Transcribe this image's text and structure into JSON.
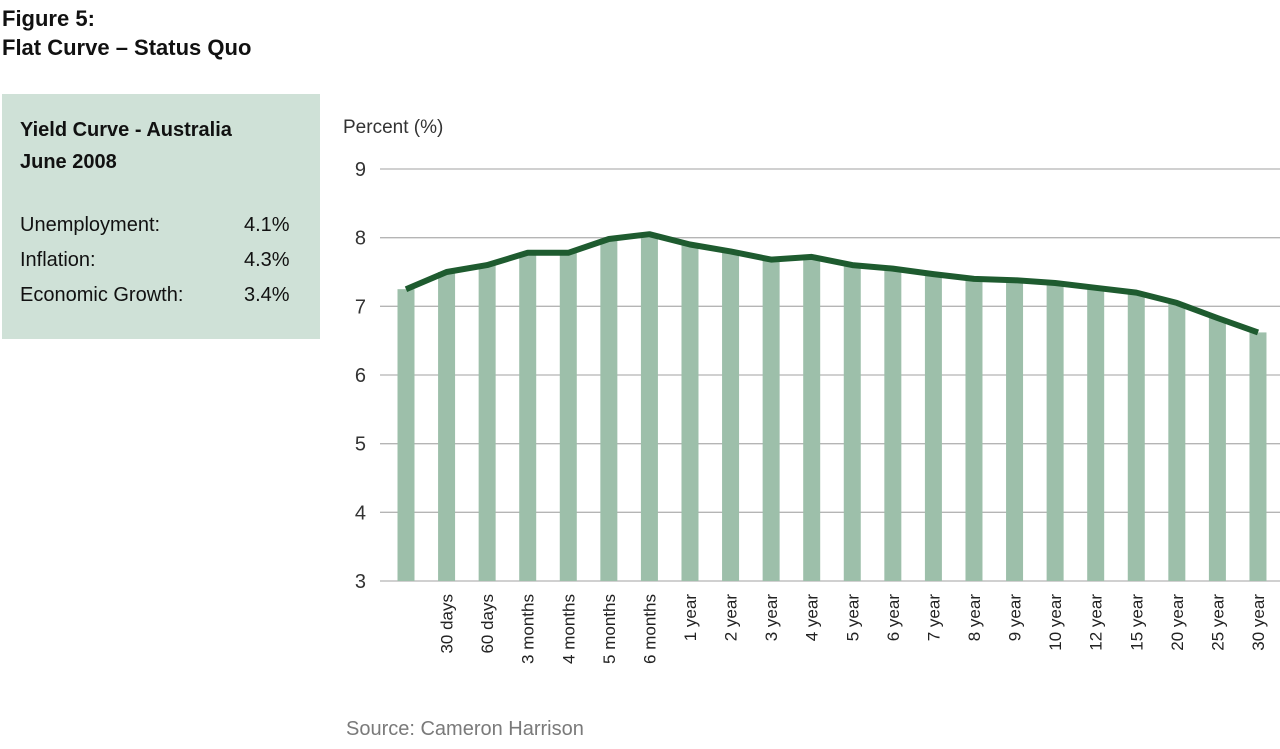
{
  "figure": {
    "label": "Figure 5:",
    "title": "Flat Curve – Status Quo"
  },
  "info_box": {
    "title_line1": "Yield Curve - Australia",
    "title_line2": "June 2008",
    "rows": [
      {
        "label": "Unemployment:",
        "value": "4.1%"
      },
      {
        "label": "Inflation:",
        "value": "4.3%"
      },
      {
        "label": "Economic Growth:",
        "value": "3.4%"
      }
    ]
  },
  "source": "Source: Cameron Harrison",
  "colors": {
    "bar": "#9dbfaa",
    "line": "#1e5b2f",
    "grid": "#b5b5b5",
    "box_bg": "#cfe1d7"
  },
  "chart_data": {
    "type": "bar",
    "ylabel": "Percent (%)",
    "ylim": [
      3,
      9
    ],
    "yticks": [
      3,
      4,
      5,
      6,
      7,
      8,
      9
    ],
    "grid": true,
    "categories": [
      "",
      "30 days",
      "60 days",
      "3 months",
      "4 months",
      "5 months",
      "6 months",
      "1 year",
      "2 year",
      "3 year",
      "4 year",
      "5 year",
      "6 year",
      "7 year",
      "8 year",
      "9 year",
      "10 year",
      "12 year",
      "15 year",
      "20 year",
      "25 year",
      "30 year"
    ],
    "series": [
      {
        "type": "bar",
        "values": [
          7.25,
          7.5,
          7.6,
          7.78,
          7.78,
          7.98,
          8.05,
          7.9,
          7.8,
          7.68,
          7.72,
          7.6,
          7.55,
          7.47,
          7.4,
          7.38,
          7.34,
          7.27,
          7.2,
          7.05,
          6.83,
          6.62
        ]
      },
      {
        "type": "line",
        "values": [
          7.25,
          7.5,
          7.6,
          7.78,
          7.78,
          7.98,
          8.05,
          7.9,
          7.8,
          7.68,
          7.72,
          7.6,
          7.55,
          7.47,
          7.4,
          7.38,
          7.34,
          7.27,
          7.2,
          7.05,
          6.83,
          6.62
        ]
      }
    ]
  }
}
